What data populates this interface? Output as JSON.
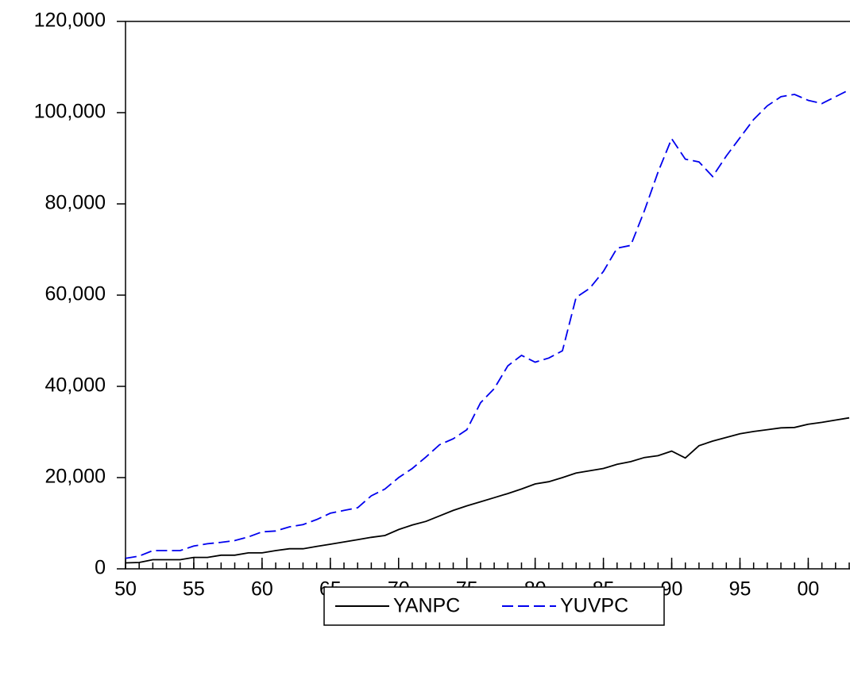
{
  "chart_data": {
    "type": "line",
    "x": [
      1950,
      1951,
      1952,
      1953,
      1954,
      1955,
      1956,
      1957,
      1958,
      1959,
      1960,
      1961,
      1962,
      1963,
      1964,
      1965,
      1966,
      1967,
      1968,
      1969,
      1970,
      1971,
      1972,
      1973,
      1974,
      1975,
      1976,
      1977,
      1978,
      1979,
      1980,
      1981,
      1982,
      1983,
      1984,
      1985,
      1986,
      1987,
      1988,
      1989,
      1990,
      1991,
      1992,
      1993,
      1994,
      1995,
      1996,
      1997,
      1998,
      1999,
      2000,
      2001,
      2002,
      2003
    ],
    "series": [
      {
        "name": "YANPC",
        "color": "#000000",
        "dash": false,
        "values": [
          1300,
          1400,
          2000,
          2000,
          2000,
          2500,
          2500,
          3000,
          3000,
          3500,
          3500,
          4000,
          4400,
          4400,
          4900,
          5400,
          5900,
          6400,
          6900,
          7300,
          8600,
          9600,
          10400,
          11600,
          12800,
          13800,
          14700,
          15600,
          16500,
          17500,
          18600,
          19100,
          20000,
          21000,
          21500,
          22000,
          22900,
          23500,
          24400,
          24800,
          25800,
          24300,
          27000,
          28000,
          28800,
          29600,
          30100,
          30500,
          30900,
          31000,
          31700,
          32100,
          32600,
          33100
        ]
      },
      {
        "name": "YUVPC",
        "color": "#0000ee",
        "dash": true,
        "values": [
          2300,
          2800,
          4000,
          4000,
          4000,
          5000,
          5500,
          5800,
          6200,
          7000,
          8100,
          8300,
          9200,
          9700,
          10800,
          12200,
          12800,
          13400,
          16000,
          17500,
          20000,
          22000,
          24500,
          27200,
          28500,
          30500,
          36400,
          39500,
          44500,
          46800,
          45300,
          46200,
          47800,
          59500,
          61500,
          65200,
          70300,
          70900,
          78500,
          87000,
          94300,
          89800,
          89200,
          86000,
          90500,
          94500,
          98500,
          101500,
          103500,
          104000,
          102700,
          102000,
          103500,
          105000
        ]
      }
    ],
    "xlim": [
      1950,
      2003
    ],
    "xticks": [
      {
        "value": 1950,
        "label": "50"
      },
      {
        "value": 1955,
        "label": "55"
      },
      {
        "value": 1960,
        "label": "60"
      },
      {
        "value": 1965,
        "label": "65"
      },
      {
        "value": 1970,
        "label": "70"
      },
      {
        "value": 1975,
        "label": "75"
      },
      {
        "value": 1980,
        "label": "80"
      },
      {
        "value": 1985,
        "label": "85"
      },
      {
        "value": 1990,
        "label": "90"
      },
      {
        "value": 1995,
        "label": "95"
      },
      {
        "value": 2000,
        "label": "00"
      }
    ],
    "ylim": [
      0,
      120000
    ],
    "yticks": [
      0,
      {
        "value": 20000,
        "label": "20,000"
      },
      {
        "value": 40000,
        "label": "40,000"
      },
      {
        "value": 60000,
        "label": "60,000"
      },
      {
        "value": 80000,
        "label": "80,000"
      },
      {
        "value": 100000,
        "label": "100,000"
      },
      {
        "value": 120000,
        "label": "120,000"
      }
    ],
    "grid": false,
    "legend": "bottom"
  }
}
